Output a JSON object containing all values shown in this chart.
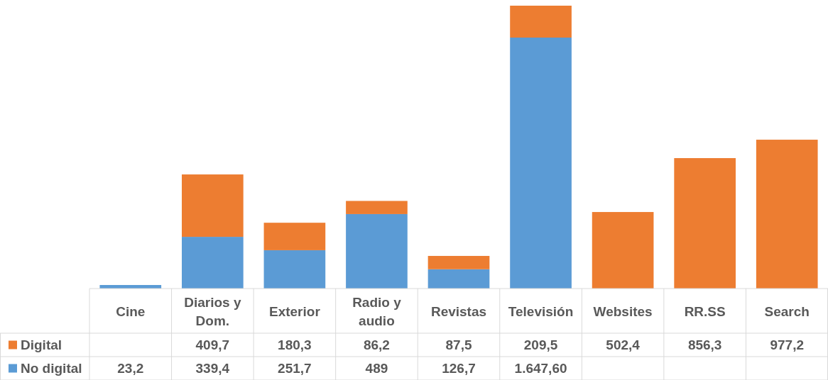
{
  "chart_data": {
    "type": "bar",
    "stacked": true,
    "categories": [
      "Cine",
      "Diarios y Dom.",
      "Exterior",
      "Radio y audio",
      "Revistas",
      "Televisión",
      "Websites",
      "RR.SS",
      "Search"
    ],
    "series": [
      {
        "name": "No digital",
        "color": "#5b9bd5",
        "values": [
          23.2,
          339.4,
          251.7,
          489,
          126.7,
          1647.6,
          null,
          null,
          null
        ],
        "value_labels": [
          "23,2",
          "339,4",
          "251,7",
          "489",
          "126,7",
          "1.647,60",
          null,
          null,
          null
        ]
      },
      {
        "name": "Digital",
        "color": "#ed7d31",
        "values": [
          null,
          409.7,
          180.3,
          86.2,
          87.5,
          209.5,
          502.4,
          856.3,
          977.2
        ],
        "value_labels": [
          null,
          "409,7",
          "180,3",
          "86,2",
          "87,5",
          "209,5",
          "502,4",
          "856,3",
          "977,2"
        ]
      }
    ],
    "legend": "bottom left"
  }
}
